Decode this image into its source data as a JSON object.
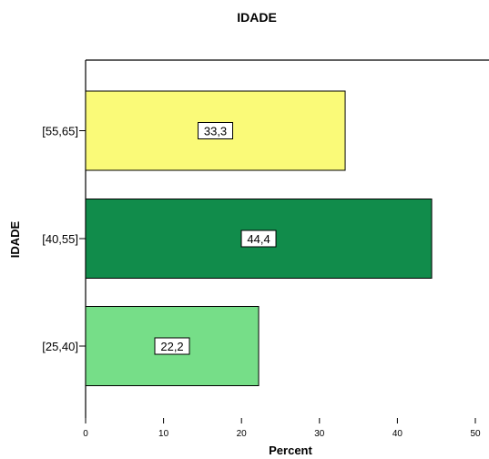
{
  "chart_data": {
    "type": "bar",
    "orientation": "horizontal",
    "title": "IDADE",
    "xlabel": "Percent",
    "ylabel": "IDADE",
    "categories": [
      "[55,65]",
      "[40,55]",
      "[25,40]"
    ],
    "values": [
      33.3,
      44.4,
      22.2
    ],
    "value_labels": [
      "33,3",
      "44,4",
      "22,2"
    ],
    "colors": [
      "#fafa78",
      "#118c4b",
      "#76de88"
    ],
    "xlim": [
      0,
      50
    ],
    "xticks": [
      0,
      10,
      20,
      30,
      40,
      50
    ],
    "grid": false,
    "legend": "none"
  }
}
